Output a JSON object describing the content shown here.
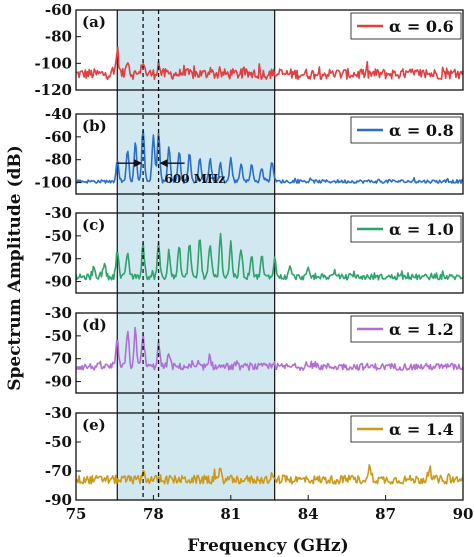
{
  "chart_data": {
    "type": "line",
    "xlabel": "Frequency (GHz)",
    "ylabel": "Spectrum Amplitude (dB)",
    "xlim": [
      75,
      90
    ],
    "xticks": [
      "75",
      "78",
      "81",
      "84",
      "87",
      "90"
    ],
    "shaded_region": [
      76.6,
      82.7
    ],
    "dashed_lines": [
      77.6,
      78.2
    ],
    "annotation": {
      "text": "600 MHz",
      "panel": 1,
      "x_left": 77.6,
      "x_right": 78.2,
      "y": -83
    },
    "panels": [
      {
        "label": "(a)",
        "legend": "α = 0.6",
        "color": "#e0403f",
        "ylim": [
          -120,
          -60
        ],
        "yticks": [
          "-60",
          "-80",
          "-100",
          "-120"
        ],
        "baseline": -108,
        "noise": 4,
        "peaks": [
          [
            76.6,
            18
          ],
          [
            77.0,
            12
          ],
          [
            77.6,
            10
          ],
          [
            78.2,
            8
          ],
          [
            80.2,
            4
          ]
        ]
      },
      {
        "label": "(b)",
        "legend": "α = 0.8",
        "color": "#2a6fc9",
        "ylim": [
          -110,
          -40
        ],
        "yticks": [
          "-40",
          "-60",
          "-80",
          "-100"
        ],
        "baseline": -99,
        "noise": 1.5,
        "peaks": [
          [
            76.6,
            18
          ],
          [
            77.0,
            26
          ],
          [
            77.3,
            34
          ],
          [
            77.6,
            46
          ],
          [
            78.0,
            40
          ],
          [
            78.2,
            42
          ],
          [
            78.6,
            30
          ],
          [
            79.0,
            26
          ],
          [
            79.4,
            24
          ],
          [
            79.8,
            22
          ],
          [
            80.2,
            20
          ],
          [
            80.6,
            16
          ],
          [
            81.0,
            20
          ],
          [
            81.4,
            16
          ],
          [
            81.8,
            14
          ],
          [
            82.2,
            12
          ],
          [
            82.6,
            18
          ]
        ]
      },
      {
        "label": "(c)",
        "legend": "α = 1.0",
        "color": "#2ea36b",
        "ylim": [
          -100,
          -30
        ],
        "yticks": [
          "-30",
          "-50",
          "-70",
          "-90"
        ],
        "baseline": -86,
        "noise": 2.5,
        "peaks": [
          [
            75.7,
            8
          ],
          [
            76.1,
            12
          ],
          [
            76.6,
            24
          ],
          [
            77.0,
            22
          ],
          [
            77.6,
            28
          ],
          [
            78.2,
            30
          ],
          [
            78.6,
            24
          ],
          [
            79.0,
            26
          ],
          [
            79.4,
            30
          ],
          [
            79.8,
            34
          ],
          [
            80.2,
            30
          ],
          [
            80.6,
            38
          ],
          [
            81.0,
            30
          ],
          [
            81.4,
            26
          ],
          [
            81.8,
            20
          ],
          [
            82.2,
            18
          ],
          [
            82.7,
            16
          ],
          [
            83.3,
            8
          ],
          [
            84.0,
            6
          ],
          [
            85.0,
            5
          ]
        ]
      },
      {
        "label": "(d)",
        "legend": "α = 1.2",
        "color": "#b06fd6",
        "ylim": [
          -100,
          -30
        ],
        "yticks": [
          "-30",
          "-50",
          "-70",
          "-90"
        ],
        "baseline": -77,
        "noise": 3,
        "peaks": [
          [
            76.6,
            22
          ],
          [
            77.0,
            30
          ],
          [
            77.3,
            34
          ],
          [
            77.6,
            28
          ],
          [
            78.2,
            20
          ],
          [
            78.6,
            12
          ],
          [
            80.2,
            6
          ]
        ]
      },
      {
        "label": "(e)",
        "legend": "α = 1.4",
        "color": "#cc9a1a",
        "ylim": [
          -90,
          -30
        ],
        "yticks": [
          "-30",
          "-50",
          "-70",
          "-90"
        ],
        "baseline": -76,
        "noise": 3,
        "peaks": [
          [
            77.6,
            6
          ],
          [
            80.6,
            6
          ],
          [
            86.4,
            10
          ],
          [
            88.7,
            8
          ]
        ]
      }
    ]
  }
}
